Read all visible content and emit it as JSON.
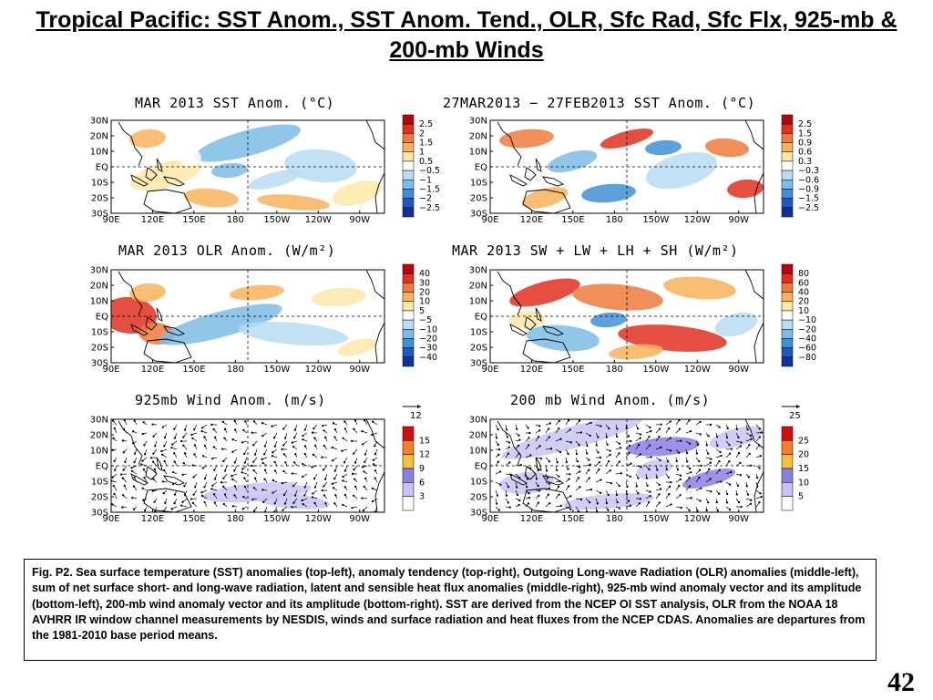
{
  "title": "Tropical Pacific: SST Anom., SST Anom. Tend., OLR, Sfc Rad, Sfc Flx, 925-mb & 200-mb Winds",
  "panels": [
    {
      "title": "MAR 2013 SST Anom. (°C)",
      "scale": [
        "2.5",
        "2",
        "1.5",
        "1",
        "0.5",
        "−0.5",
        "−1",
        "−1.5",
        "−2",
        "−2.5"
      ],
      "colors": [
        "#b5070d",
        "#e03020",
        "#f07a3c",
        "#f8b25a",
        "#fde7a8",
        "#ffffff",
        "#b8dcf2",
        "#7bbce6",
        "#3f8fd6",
        "#1f58c0",
        "#12329a"
      ],
      "kind": "sst"
    },
    {
      "title": "27MAR2013 − 27FEB2013 SST Anom. (°C)",
      "scale": [
        "2.5",
        "1.5",
        "0.9",
        "0.6",
        "0.3",
        "−0.3",
        "−0.6",
        "−0.9",
        "−1.5",
        "−2.5"
      ],
      "colors": [
        "#b5070d",
        "#e03020",
        "#f07a3c",
        "#f8b25a",
        "#fde7a8",
        "#ffffff",
        "#b8dcf2",
        "#7bbce6",
        "#3f8fd6",
        "#1f58c0",
        "#12329a"
      ],
      "kind": "tend"
    },
    {
      "title": "MAR 2013 OLR Anom. (W/m²)",
      "scale": [
        "40",
        "30",
        "20",
        "10",
        "5",
        "−5",
        "−10",
        "−20",
        "−30",
        "−40"
      ],
      "colors": [
        "#b5070d",
        "#e03020",
        "#f07a3c",
        "#f8b25a",
        "#fde7a8",
        "#ffffff",
        "#b8dcf2",
        "#7bbce6",
        "#3f8fd6",
        "#1f58c0",
        "#12329a"
      ],
      "kind": "olr"
    },
    {
      "title": "MAR 2013 SW + LW + LH + SH (W/m²)",
      "scale": [
        "80",
        "60",
        "40",
        "20",
        "10",
        "−10",
        "−20",
        "−40",
        "−60",
        "−80"
      ],
      "colors": [
        "#b5070d",
        "#e03020",
        "#f07a3c",
        "#f8b25a",
        "#fde7a8",
        "#ffffff",
        "#b8dcf2",
        "#7bbce6",
        "#3f8fd6",
        "#1f58c0",
        "#12329a"
      ],
      "kind": "flx"
    },
    {
      "title": "925mb Wind Anom. (m/s)",
      "scale": [
        "15",
        "12",
        "9",
        "6",
        "3"
      ],
      "ref": "12",
      "colors": [
        "#d01010",
        "#f08030",
        "#f8c040",
        "#8b7fe6",
        "#c8c4f4",
        "#ffffff"
      ],
      "kind": "w925"
    },
    {
      "title": "200 mb Wind Anom. (m/s)",
      "scale": [
        "25",
        "20",
        "15",
        "10",
        "5"
      ],
      "ref": "25",
      "colors": [
        "#d01010",
        "#f08030",
        "#f8c040",
        "#8b7fe6",
        "#c8c4f4",
        "#ffffff"
      ],
      "kind": "w200"
    }
  ],
  "lat_labels": [
    "30N",
    "20N",
    "10N",
    "EQ",
    "10S",
    "20S",
    "30S"
  ],
  "lon_labels": [
    "90E",
    "120E",
    "150E",
    "180",
    "150W",
    "120W",
    "90W"
  ],
  "caption": "Fig. P2. Sea surface temperature (SST) anomalies (top-left), anomaly tendency (top-right), Outgoing Long-wave Radiation (OLR) anomalies (middle-left), sum of net surface short- and long-wave radiation, latent and sensible heat flux anomalies (middle-right), 925-mb wind anomaly vector and its amplitude (bottom-left), 200-mb wind anomaly vector and its amplitude  (bottom-right). SST are derived from the NCEP OI SST analysis, OLR from the NOAA 18 AVHRR IR window channel measurements by NESDIS, winds and surface radiation and heat fluxes from the NCEP CDAS. Anomalies are  departures from the 1981-2010 base period means.",
  "page_number": "42"
}
